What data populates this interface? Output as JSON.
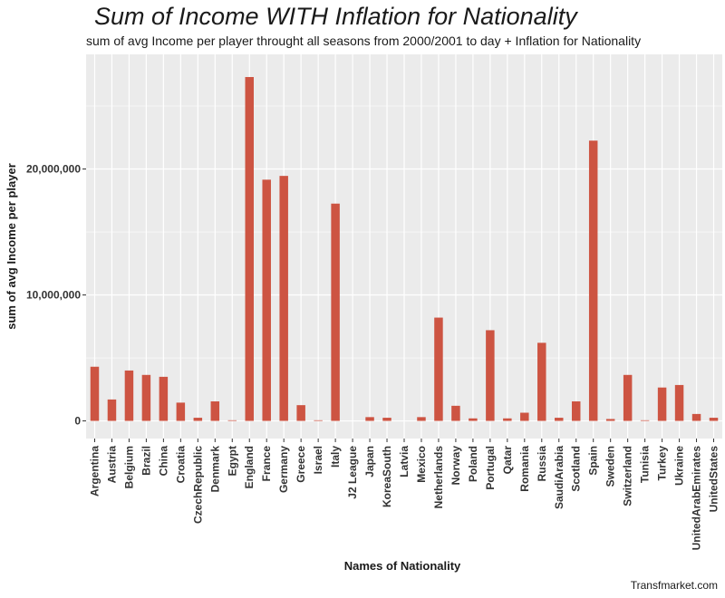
{
  "chart_data": {
    "type": "bar",
    "title": "Sum of Income WITH Inflation for Nationality",
    "subtitle": "sum of avg Income  per player throught all seasons from 2000/2001 to day + Inflation for Nationality",
    "xlabel": "Names of Nationality",
    "ylabel": "sum of avg Income  per player",
    "caption": "Transfmarket.com",
    "ylim": [
      -1400000,
      29100000
    ],
    "yticks": [
      0,
      10000000,
      20000000
    ],
    "ytick_labels": [
      "0",
      "10,000,000",
      "20,000,000"
    ],
    "grid": true,
    "bar_color": "#cd5442",
    "panel_color": "#ebebeb",
    "grid_color": "#ffffff",
    "categories": [
      "Argentina",
      "Austria",
      "Belgium",
      "Brazil",
      "China",
      "Croatia",
      "CzechRepublic",
      "Denmark",
      "Egypt",
      "England",
      "France",
      "Germany",
      "Greece",
      "Israel",
      "Italy",
      "J2 League",
      "Japan",
      "KoreaSouth",
      "Latvia",
      "Mexico",
      "Netherlands",
      "Norway",
      "Poland",
      "Portugal",
      "Qatar",
      "Romania",
      "Russia",
      "SaudiArabia",
      "Scotland",
      "Spain",
      "Sweden",
      "Switzerland",
      "Tunisia",
      "Turkey",
      "Ukraine",
      "UnitedArabEmirates",
      "UnitedStates"
    ],
    "values": [
      4300000,
      1700000,
      4000000,
      3650000,
      3500000,
      1450000,
      250000,
      1550000,
      50000,
      27300000,
      19150000,
      19450000,
      1250000,
      50000,
      17250000,
      0,
      300000,
      250000,
      0,
      300000,
      8200000,
      1200000,
      200000,
      7200000,
      200000,
      650000,
      6200000,
      250000,
      1550000,
      22250000,
      150000,
      3650000,
      50000,
      2650000,
      2850000,
      550000,
      250000
    ]
  }
}
